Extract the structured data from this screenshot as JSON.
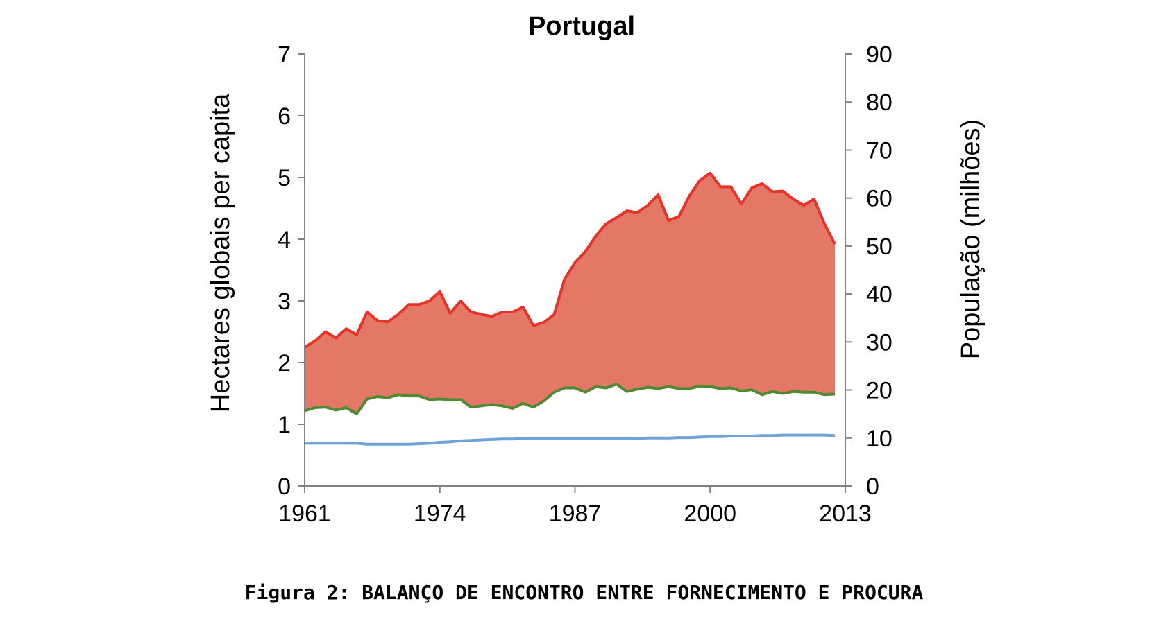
{
  "caption": "Figura 2: BALANÇO DE ENCONTRO ENTRE FORNECIMENTO E PROCURA",
  "chart_data": {
    "type": "area",
    "title": "Portugal",
    "ylabel": "Hectares  globais per capita",
    "y2label": "População  (milhões)",
    "xlabel": "",
    "xlim": [
      1961,
      2013
    ],
    "ylim": [
      0,
      7
    ],
    "y2lim": [
      0,
      90
    ],
    "xticks": [
      "1961",
      "1974",
      "1987",
      "2000",
      "2013"
    ],
    "yticks": [
      "0",
      "1",
      "2",
      "3",
      "4",
      "5",
      "6",
      "7"
    ],
    "y2ticks": [
      "0",
      "10",
      "20",
      "30",
      "40",
      "50",
      "60",
      "70",
      "80",
      "90"
    ],
    "legend": "none",
    "grid": false,
    "colors": {
      "demand": "#e83228",
      "supply": "#4f8a32",
      "population": "#6fa3d8",
      "deficit_fill": "#e47866",
      "axis": "#808080"
    },
    "x": [
      1961,
      1962,
      1963,
      1964,
      1965,
      1966,
      1967,
      1968,
      1969,
      1970,
      1971,
      1972,
      1973,
      1974,
      1975,
      1976,
      1977,
      1978,
      1979,
      1980,
      1981,
      1982,
      1983,
      1984,
      1985,
      1986,
      1987,
      1988,
      1989,
      1990,
      1991,
      1992,
      1993,
      1994,
      1995,
      1996,
      1997,
      1998,
      1999,
      2000,
      2001,
      2002,
      2003,
      2004,
      2005,
      2006,
      2007,
      2008,
      2009,
      2010,
      2011,
      2012
    ],
    "series": [
      {
        "values": [
          2.25,
          2.35,
          2.5,
          2.4,
          2.55,
          2.45,
          2.82,
          2.68,
          2.66,
          2.78,
          2.94,
          2.94,
          3.0,
          3.15,
          2.8,
          3.0,
          2.82,
          2.78,
          2.75,
          2.82,
          2.82,
          2.9,
          2.6,
          2.65,
          2.78,
          3.35,
          3.62,
          3.8,
          4.05,
          4.25,
          4.35,
          4.46,
          4.43,
          4.55,
          4.72,
          4.3,
          4.37,
          4.7,
          4.95,
          5.07,
          4.85,
          4.85,
          4.57,
          4.83,
          4.9,
          4.77,
          4.78,
          4.65,
          4.55,
          4.65,
          4.25,
          3.92
        ]
      },
      {
        "values": [
          1.22,
          1.27,
          1.28,
          1.23,
          1.27,
          1.17,
          1.41,
          1.45,
          1.43,
          1.48,
          1.46,
          1.46,
          1.4,
          1.41,
          1.4,
          1.4,
          1.28,
          1.3,
          1.32,
          1.3,
          1.26,
          1.34,
          1.28,
          1.38,
          1.52,
          1.59,
          1.59,
          1.52,
          1.61,
          1.59,
          1.65,
          1.53,
          1.57,
          1.6,
          1.58,
          1.61,
          1.58,
          1.58,
          1.62,
          1.61,
          1.58,
          1.59,
          1.54,
          1.56,
          1.48,
          1.53,
          1.5,
          1.53,
          1.52,
          1.52,
          1.48,
          1.49
        ]
      },
      {
        "values": [
          8.9,
          8.9,
          8.9,
          8.9,
          8.9,
          8.9,
          8.7,
          8.7,
          8.7,
          8.7,
          8.7,
          8.8,
          8.9,
          9.1,
          9.2,
          9.4,
          9.5,
          9.6,
          9.7,
          9.8,
          9.8,
          9.9,
          9.9,
          9.9,
          9.9,
          9.9,
          9.9,
          9.9,
          9.9,
          9.9,
          9.9,
          9.9,
          9.9,
          10.0,
          10.0,
          10.0,
          10.1,
          10.1,
          10.2,
          10.3,
          10.3,
          10.4,
          10.4,
          10.4,
          10.5,
          10.5,
          10.6,
          10.6,
          10.6,
          10.6,
          10.6,
          10.5
        ],
        "axis": "right"
      }
    ]
  }
}
